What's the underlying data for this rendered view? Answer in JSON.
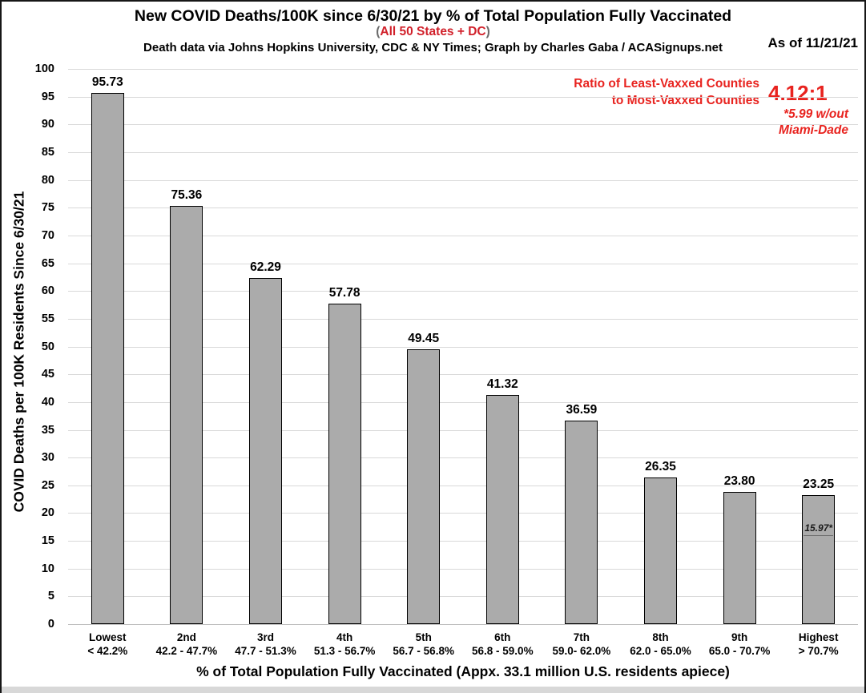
{
  "page": {
    "as_of": "As of 11/21/21"
  },
  "header": {
    "title": "New COVID Deaths/100K since 6/30/21 by % of Total Population Fully Vaccinated",
    "subtitle_open": "(",
    "subtitle": "All 50 States + DC",
    "subtitle_close": ")",
    "subtitle_color": "#d1202a",
    "paren_color": "#6b6b6b",
    "credit": "Death data via Johns Hopkins University, CDC & NY Times; Graph by Charles Gaba / ACASignups.net"
  },
  "annotation": {
    "color": "#e8231f",
    "line1": "Ratio of Least-Vaxxed Counties",
    "line2": "to Most-Vaxxed Counties",
    "ratio": "4.12:1",
    "note_line1": "*5.99 w/out",
    "note_line2": "Miami-Dade"
  },
  "chart_data": {
    "type": "bar",
    "title": "New COVID Deaths/100K since 6/30/21 by % of Total Population Fully Vaccinated",
    "subtitle": "All 50 States + DC",
    "xlabel": "% of Total Population Fully Vaccinated (Appx. 33.1 million U.S. residents apiece)",
    "ylabel": "COVID Deaths per 100K Residents Since 6/30/21",
    "ylim": [
      0,
      100
    ],
    "ytick_step": 5,
    "grid": true,
    "legend": "none",
    "bar_color": "#ababab",
    "bar_border_color": "#000000",
    "gridline_color": "#d9d9d9",
    "baseline_color": "#c0c0c0",
    "categories": [
      "Lowest",
      "2nd",
      "3rd",
      "4th",
      "5th",
      "6th",
      "7th",
      "8th",
      "9th",
      "Highest"
    ],
    "category_ranges": [
      "< 42.2%",
      "42.2 - 47.7%",
      "47.7 - 51.3%",
      "51.3 - 56.7%",
      "56.7 - 56.8%",
      "56.8 - 59.0%",
      "59.0- 62.0%",
      "62.0 - 65.0%",
      "65.0 - 70.7%",
      "> 70.7%"
    ],
    "values": [
      95.73,
      75.36,
      62.29,
      57.78,
      49.45,
      41.32,
      36.59,
      26.35,
      23.8,
      23.25
    ],
    "value_labels": [
      "95.73",
      "75.36",
      "62.29",
      "57.78",
      "49.45",
      "41.32",
      "36.59",
      "26.35",
      "23.80",
      "23.25"
    ],
    "special_marker": {
      "bar_index": 9,
      "value": 15.97,
      "label": "15.97*"
    }
  }
}
